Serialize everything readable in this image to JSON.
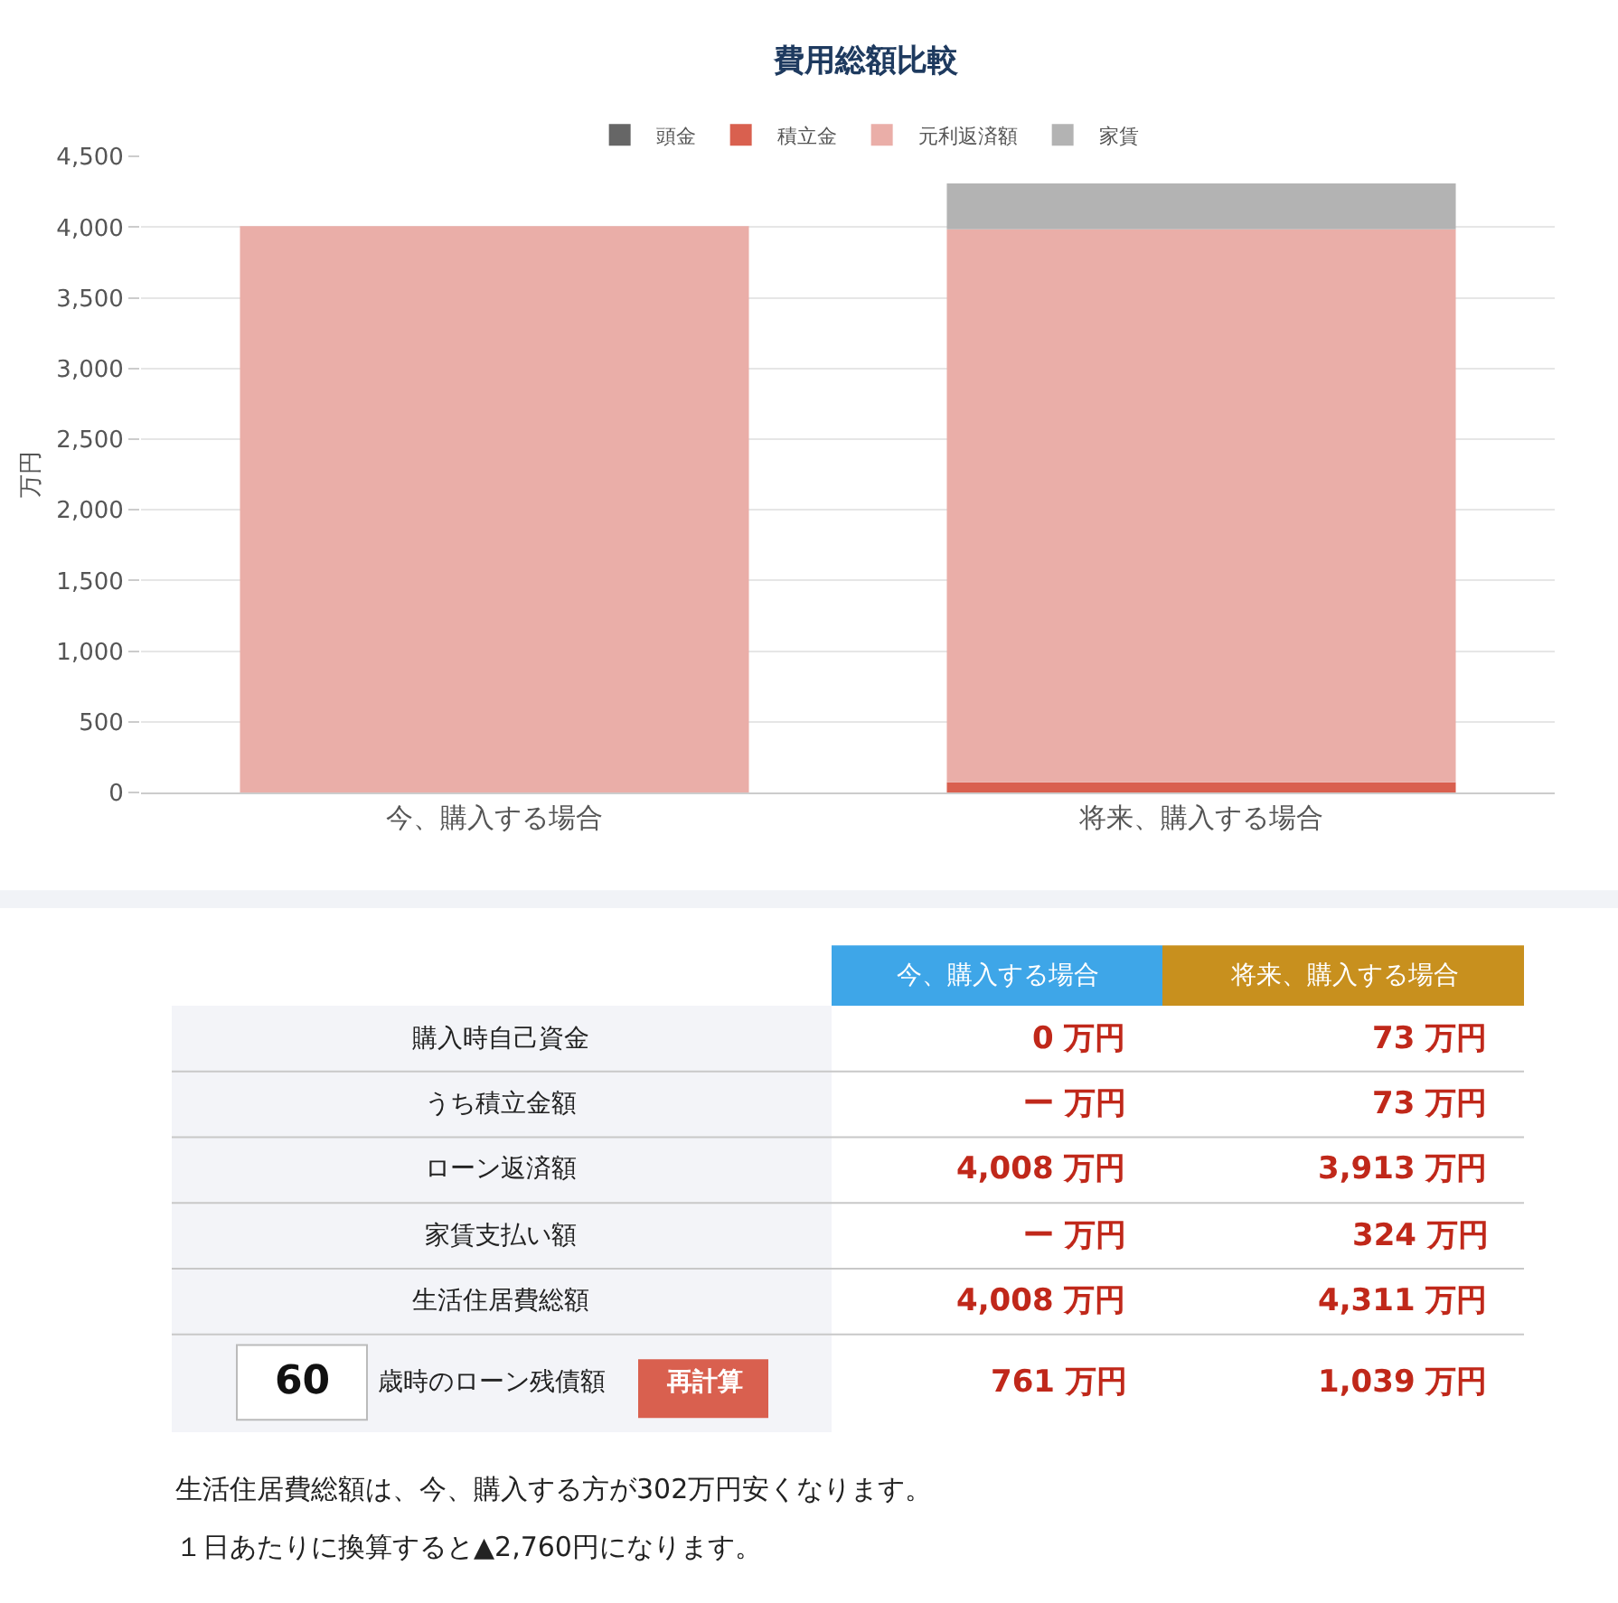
{
  "chart_data": [
    {
      "type": "bar",
      "title": "費用総額比較",
      "ylabel": "万円",
      "categories": [
        "今、購入する場合",
        "将来、購入する場合"
      ],
      "stacked": true,
      "series": [
        {
          "name": "頭金",
          "color": "#666666",
          "values": [
            0,
            0
          ]
        },
        {
          "name": "積立金",
          "color": "#d9604f",
          "values": [
            0,
            73
          ]
        },
        {
          "name": "元利返済額",
          "color": "#eaaea8",
          "values": [
            4008,
            3913
          ]
        },
        {
          "name": "家賃",
          "color": "#b3b3b3",
          "values": [
            0,
            324
          ]
        }
      ],
      "ylim": [
        0,
        4500
      ],
      "yticks": [
        0,
        {
          "value": 500,
          "label": "500"
        },
        {
          "value": 1000,
          "label": "1,000"
        },
        {
          "value": 1500,
          "label": "1,500"
        },
        {
          "value": 2000,
          "label": "2,000"
        },
        {
          "value": 2500,
          "label": "2,500"
        },
        {
          "value": 3000,
          "label": "3,000"
        },
        {
          "value": 3500,
          "label": "3,500"
        },
        {
          "value": 4000,
          "label": "4,000"
        },
        {
          "value": 4500,
          "label": "4,500"
        }
      ],
      "grid": "y",
      "legend": "top"
    },
    {
      "type": "other",
      "annotations": [
        "今、購入する場合",
        "将来、購入する場合",
        "購入時自己資金",
        "0 万円",
        "73 万円",
        "うち積立金額",
        "ー 万円",
        "73 万円",
        "ローン返済額",
        "4,008 万円",
        "3,913 万円",
        "家賃支払い額",
        "ー 万円",
        "324 万円",
        "生活住居費総額",
        "4,008 万円",
        "4,311 万円",
        "60",
        "歳時のローン残債額",
        "再計算",
        "761 万円",
        "1,039 万円",
        "生活住居費総額は、今、購入する方が302万円安くなります。",
        "１日あたりに換算すると▲2,760円になります。"
      ]
    }
  ]
}
